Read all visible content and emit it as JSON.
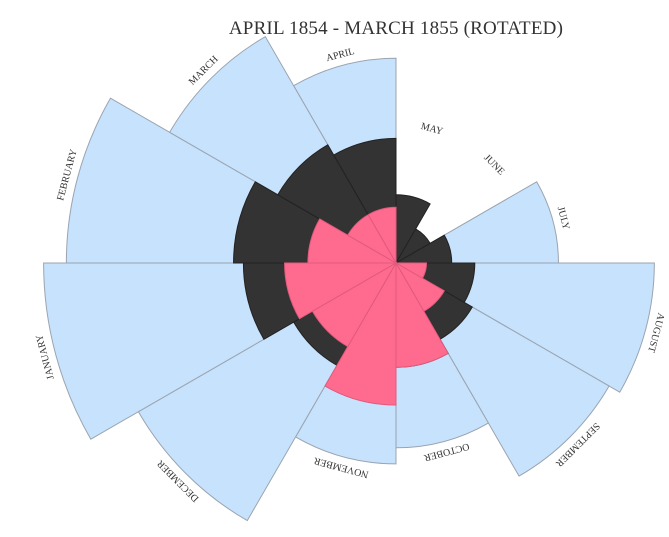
{
  "chart_data": {
    "type": "polar-area",
    "title": "APRIL 1854 - MARCH 1855 (ROTATED)",
    "series": [
      {
        "key": "disease",
        "color": "#c7e2fc"
      },
      {
        "key": "other",
        "color": "#333333"
      },
      {
        "key": "wounds",
        "color": "#ff6b8f"
      }
    ],
    "months": [
      {
        "label": "APRIL",
        "disease": 27,
        "other": 10,
        "wounds": 2
      },
      {
        "label": "MAY",
        "disease": 1,
        "other": 3,
        "wounds": 0
      },
      {
        "label": "JUNE",
        "disease": 0.5,
        "other": 1,
        "wounds": 0
      },
      {
        "label": "JULY",
        "disease": 17,
        "other": 2,
        "wounds": 0
      },
      {
        "label": "AUGUST",
        "disease": 43,
        "other": 4,
        "wounds": 0.6
      },
      {
        "label": "SEPTEMBER",
        "disease": 39,
        "other": 5,
        "wounds": 2
      },
      {
        "label": "OCTOBER",
        "disease": 22,
        "other": 7,
        "wounds": 7
      },
      {
        "label": "NOVEMBER",
        "disease": 26,
        "other": 8,
        "wounds": 13
      },
      {
        "label": "DECEMBER",
        "disease": 57,
        "other": 9,
        "wounds": 6
      },
      {
        "label": "JANUARY",
        "disease": 80,
        "other": 15,
        "wounds": 8
      },
      {
        "label": "FEBRUARY",
        "disease": 70,
        "other": 17,
        "wounds": 5
      },
      {
        "label": "MARCH",
        "disease": 44,
        "other": 12,
        "wounds": 2
      }
    ]
  }
}
